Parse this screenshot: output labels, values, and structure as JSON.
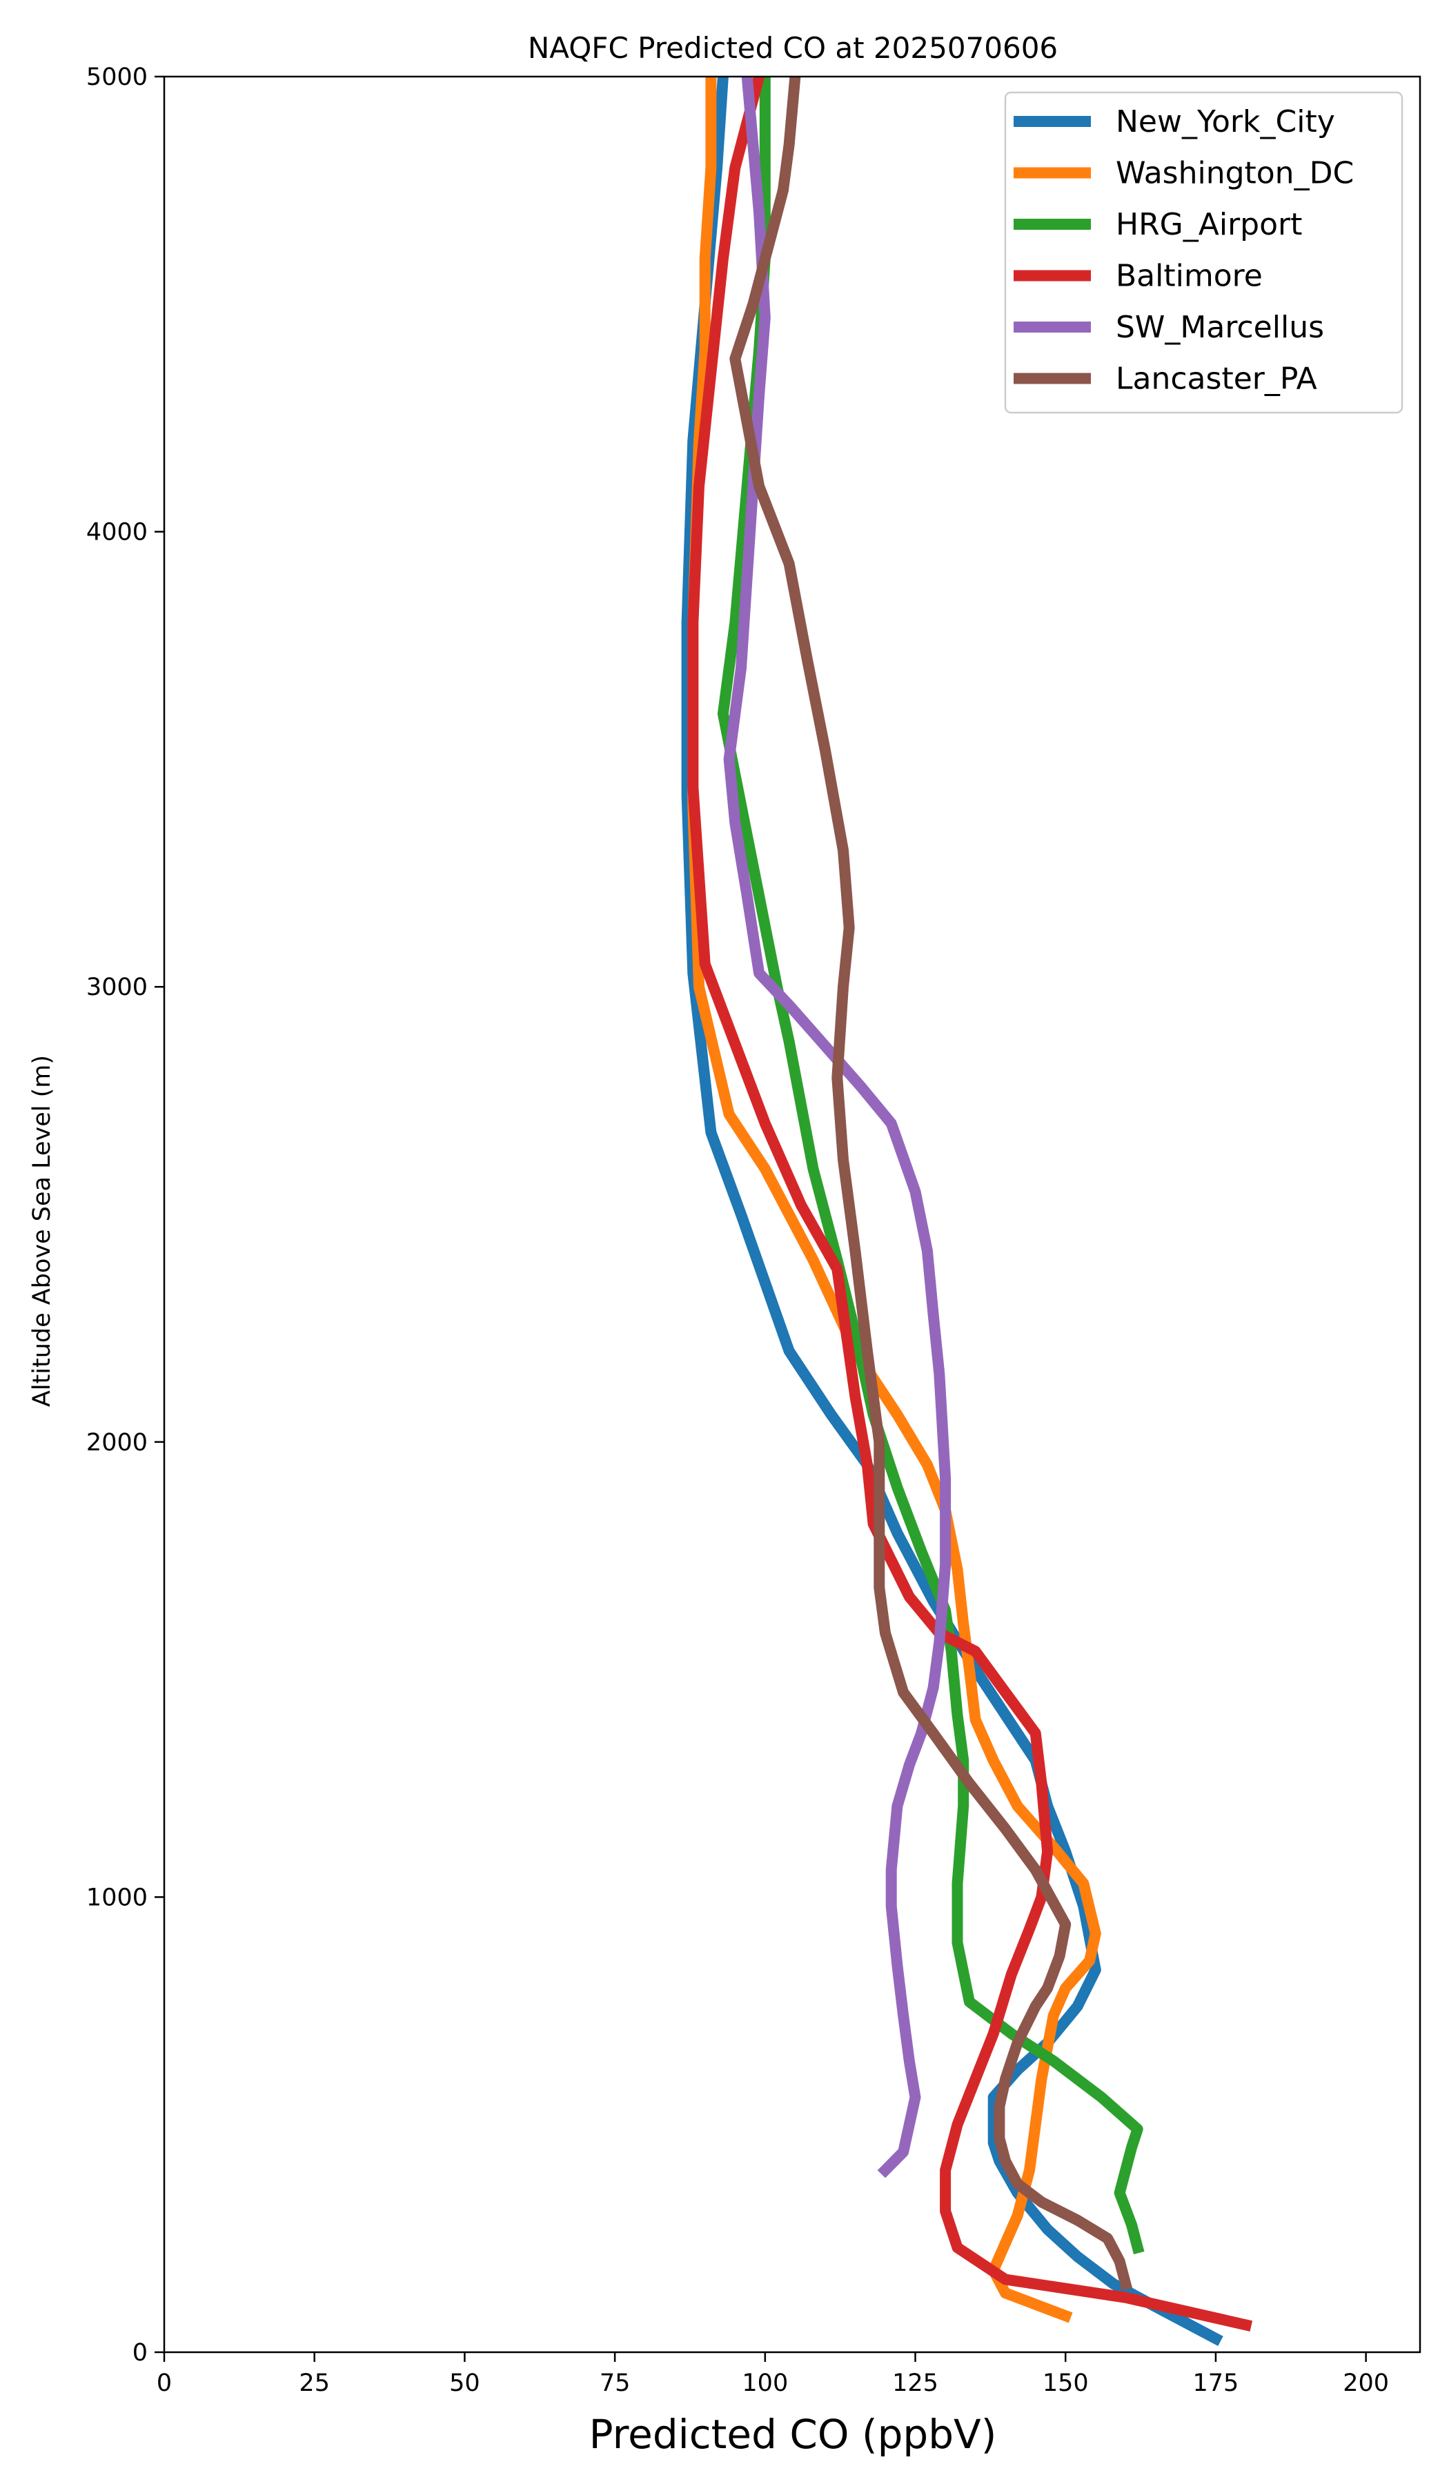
{
  "chart_data": {
    "type": "line",
    "title": "NAQFC Predicted CO at 2025070606",
    "xlabel": "Predicted CO (ppbV)",
    "ylabel": "Altitude Above Sea Level (m)",
    "xlim": [
      0,
      209
    ],
    "ylim": [
      0,
      5000
    ],
    "xticks": [
      0,
      25,
      50,
      75,
      100,
      125,
      150,
      175,
      200
    ],
    "yticks": [
      0,
      1000,
      2000,
      3000,
      4000,
      5000
    ],
    "grid": false,
    "legend_position": "top-right",
    "series": [
      {
        "name": "New_York_City",
        "color": "#1f77b4",
        "x": [
          175,
          165,
          158,
          152,
          147,
          142,
          139,
          138,
          138,
          142,
          147,
          152,
          155,
          153,
          150,
          147,
          145,
          140,
          135,
          128,
          122,
          117,
          111,
          104,
          100,
          96,
          91,
          88,
          87,
          87,
          88,
          90,
          92,
          93
        ],
        "y": [
          30,
          100,
          150,
          210,
          270,
          350,
          420,
          460,
          560,
          620,
          680,
          760,
          840,
          980,
          1100,
          1200,
          1300,
          1400,
          1500,
          1650,
          1800,
          1950,
          2060,
          2200,
          2350,
          2500,
          2680,
          3030,
          3420,
          3800,
          4200,
          4500,
          4800,
          5000
        ]
      },
      {
        "name": "Washington_DC",
        "color": "#ff7f0e",
        "x": [
          150,
          144,
          140,
          138,
          142,
          144,
          146,
          148,
          150,
          154,
          155,
          153,
          148,
          142,
          138,
          135,
          134,
          133,
          132,
          130,
          127,
          122,
          115,
          108,
          104,
          100,
          94,
          89,
          88,
          88,
          89,
          90,
          90,
          91,
          91
        ],
        "y": [
          80,
          110,
          130,
          180,
          300,
          400,
          600,
          740,
          800,
          860,
          920,
          1030,
          1110,
          1200,
          1300,
          1390,
          1500,
          1600,
          1720,
          1850,
          1950,
          2060,
          2200,
          2400,
          2500,
          2600,
          2720,
          3000,
          3400,
          3800,
          4200,
          4400,
          4600,
          4800,
          5000
        ]
      },
      {
        "name": "HRG_Airport",
        "color": "#2ca02c",
        "x": [
          162,
          161,
          159,
          160,
          161,
          162,
          156,
          148,
          141,
          134,
          132,
          132,
          133,
          133,
          132,
          131,
          130,
          126,
          122,
          118,
          115,
          112,
          108,
          104,
          102,
          99,
          96,
          93,
          95,
          97,
          99,
          100,
          100,
          100
        ],
        "y": [
          230,
          280,
          350,
          400,
          450,
          490,
          560,
          640,
          700,
          770,
          900,
          1030,
          1200,
          1300,
          1400,
          1540,
          1630,
          1760,
          1900,
          2060,
          2240,
          2400,
          2600,
          2880,
          3000,
          3200,
          3400,
          3600,
          3800,
          4100,
          4400,
          4600,
          4800,
          5000
        ]
      },
      {
        "name": "Baltimore",
        "color": "#d62728",
        "x": [
          180,
          170,
          160,
          150,
          140,
          132,
          130,
          130,
          132,
          135,
          138,
          141,
          144,
          146,
          147,
          146,
          145,
          140,
          135,
          129,
          124,
          118,
          117,
          115,
          112,
          106,
          100,
          90,
          88,
          88,
          89,
          91,
          93,
          95,
          97,
          99
        ],
        "y": [
          60,
          90,
          120,
          140,
          160,
          230,
          310,
          400,
          500,
          600,
          700,
          830,
          930,
          1000,
          1100,
          1250,
          1360,
          1450,
          1540,
          1580,
          1660,
          1820,
          1950,
          2100,
          2380,
          2520,
          2700,
          3050,
          3440,
          3800,
          4100,
          4350,
          4600,
          4800,
          4900,
          5000
        ]
      },
      {
        "name": "SW_Marcellus",
        "color": "#9467bd",
        "x": [
          120,
          123,
          124,
          125,
          124,
          123,
          122,
          121,
          121,
          122,
          124,
          126,
          128,
          129,
          130,
          130,
          129,
          128,
          127,
          125,
          121,
          116,
          110,
          104,
          99,
          97,
          95,
          94,
          96,
          97,
          98,
          99,
          100,
          99,
          98,
          97
        ],
        "y": [
          400,
          440,
          500,
          560,
          640,
          740,
          850,
          980,
          1060,
          1200,
          1290,
          1360,
          1460,
          1560,
          1730,
          1920,
          2150,
          2280,
          2420,
          2550,
          2700,
          2780,
          2870,
          2960,
          3030,
          3200,
          3360,
          3500,
          3700,
          3900,
          4100,
          4300,
          4470,
          4700,
          4850,
          5000
        ]
      },
      {
        "name": "Lancaster_PA",
        "color": "#8c564b",
        "x": [
          160,
          159,
          157,
          152,
          146,
          142,
          140,
          139,
          139,
          140,
          142,
          145,
          147,
          149,
          150,
          145,
          140,
          134,
          128,
          123,
          120,
          119,
          119,
          119,
          117,
          115,
          113,
          112,
          113,
          114,
          113,
          110,
          107,
          104,
          99,
          95,
          98,
          101,
          103,
          104,
          105
        ],
        "y": [
          150,
          200,
          250,
          290,
          330,
          370,
          420,
          470,
          540,
          600,
          680,
          760,
          800,
          870,
          940,
          1060,
          1150,
          1250,
          1360,
          1450,
          1580,
          1680,
          1820,
          2000,
          2200,
          2420,
          2620,
          2800,
          3000,
          3130,
          3300,
          3520,
          3720,
          3930,
          4100,
          4380,
          4500,
          4650,
          4750,
          4850,
          5000
        ]
      }
    ]
  }
}
